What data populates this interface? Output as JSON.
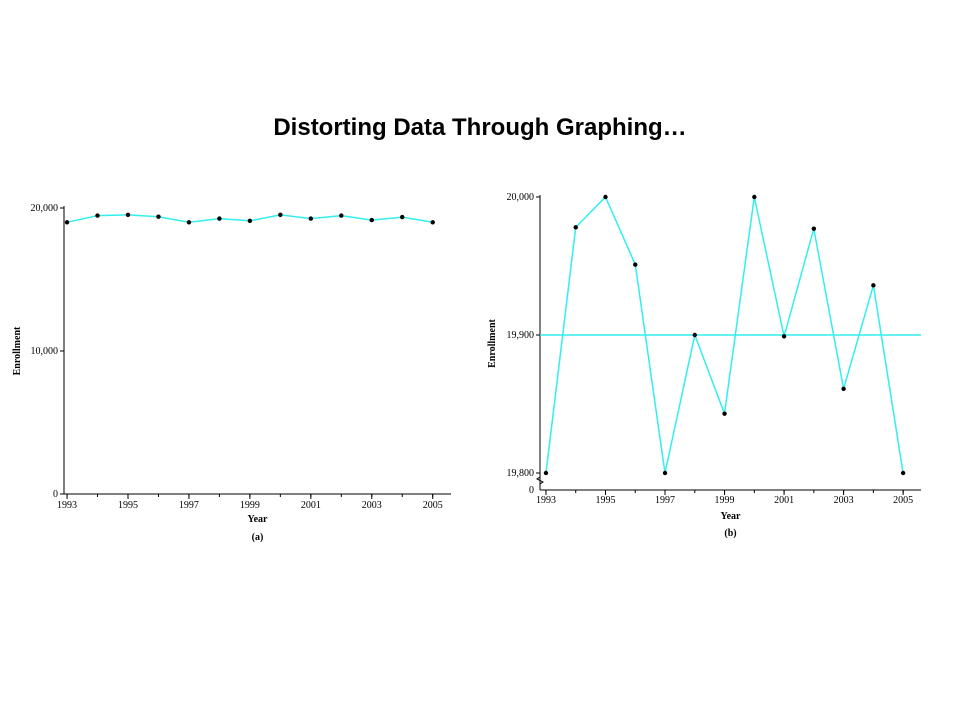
{
  "title": "Distorting Data Through Graphing…",
  "colors": {
    "line": "#33eeee",
    "marker": "#000000",
    "axis": "#000000"
  },
  "chart_data": [
    {
      "type": "line",
      "caption": "(a)",
      "xlabel": "Year",
      "ylabel": "Enrollment",
      "x": [
        1993,
        1994,
        1995,
        1996,
        1997,
        1998,
        1999,
        2000,
        2001,
        2002,
        2003,
        2004,
        2005
      ],
      "series": [
        {
          "values": [
            19800,
            19980,
            20000,
            19950,
            19800,
            19900,
            19840,
            20000,
            19900,
            19980,
            19860,
            19940,
            19800
          ]
        }
      ],
      "xlim": [
        1992.9,
        2005.6
      ],
      "ylim": [
        0,
        20000
      ],
      "xticks": [
        "1993",
        "1995",
        "1997",
        "1999",
        "2001",
        "2003",
        "2005"
      ],
      "yticks": [
        {
          "value": 0,
          "label": "0"
        },
        {
          "value": 10000,
          "label": "10,000"
        },
        {
          "value": 20000,
          "label": "20,000"
        }
      ],
      "reference_lines": []
    },
    {
      "type": "line",
      "caption": "(b)",
      "xlabel": "Year",
      "ylabel": "Enrollment",
      "x": [
        1993,
        1994,
        1995,
        1996,
        1997,
        1998,
        1999,
        2000,
        2001,
        2002,
        2003,
        2004,
        2005
      ],
      "series": [
        {
          "values": [
            19800,
            19978,
            20000,
            19951,
            19800,
            19900,
            19843,
            20000,
            19899,
            19977,
            19861,
            19936,
            19800
          ]
        }
      ],
      "xlim": [
        1992.8,
        2005.6
      ],
      "ylim": [
        19800,
        20000
      ],
      "axis_break": true,
      "xticks": [
        "1993",
        "1995",
        "1997",
        "1999",
        "2001",
        "2003",
        "2005"
      ],
      "yticks": [
        {
          "value": 19800,
          "label": "19,800"
        },
        {
          "value": 19900,
          "label": "19,900"
        },
        {
          "value": 20000,
          "label": "20,000"
        }
      ],
      "zero_label": "0",
      "reference_lines": [
        19900
      ]
    }
  ]
}
